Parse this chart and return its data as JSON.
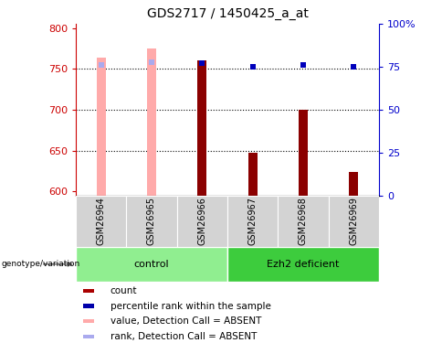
{
  "title": "GDS2717 / 1450425_a_at",
  "samples": [
    "GSM26964",
    "GSM26965",
    "GSM26966",
    "GSM26967",
    "GSM26968",
    "GSM26969"
  ],
  "ylim_left": [
    595,
    805
  ],
  "ylim_right": [
    0,
    100
  ],
  "yticks_left": [
    600,
    650,
    700,
    750,
    800
  ],
  "yticks_right": [
    0,
    25,
    50,
    75,
    100
  ],
  "ytick_right_labels": [
    "0",
    "25",
    "50",
    "75",
    "100%"
  ],
  "bar_values": [
    764,
    775,
    760,
    647,
    700,
    624
  ],
  "bar_is_absent": [
    true,
    true,
    false,
    false,
    false,
    false
  ],
  "rank_values": [
    76,
    78,
    77,
    75,
    76,
    75
  ],
  "rank_is_absent": [
    true,
    true,
    false,
    false,
    false,
    false
  ],
  "absent_bar_color": "#ffaaaa",
  "present_bar_color": "#8b0000",
  "absent_rank_color": "#aaaaee",
  "present_rank_color": "#0000bb",
  "left_axis_color": "#cc0000",
  "right_axis_color": "#0000cc",
  "grid_yticks": [
    750,
    700,
    650
  ],
  "bar_width": 0.18,
  "marker_size": 5,
  "control_color": "#90ee90",
  "ezh2_color": "#3dcc3d",
  "label_bg_color": "#d3d3d3",
  "legend_items": [
    {
      "color": "#aa0000",
      "label": "count"
    },
    {
      "color": "#0000aa",
      "label": "percentile rank within the sample"
    },
    {
      "color": "#ffaaaa",
      "label": "value, Detection Call = ABSENT"
    },
    {
      "color": "#aaaaee",
      "label": "rank, Detection Call = ABSENT"
    }
  ]
}
